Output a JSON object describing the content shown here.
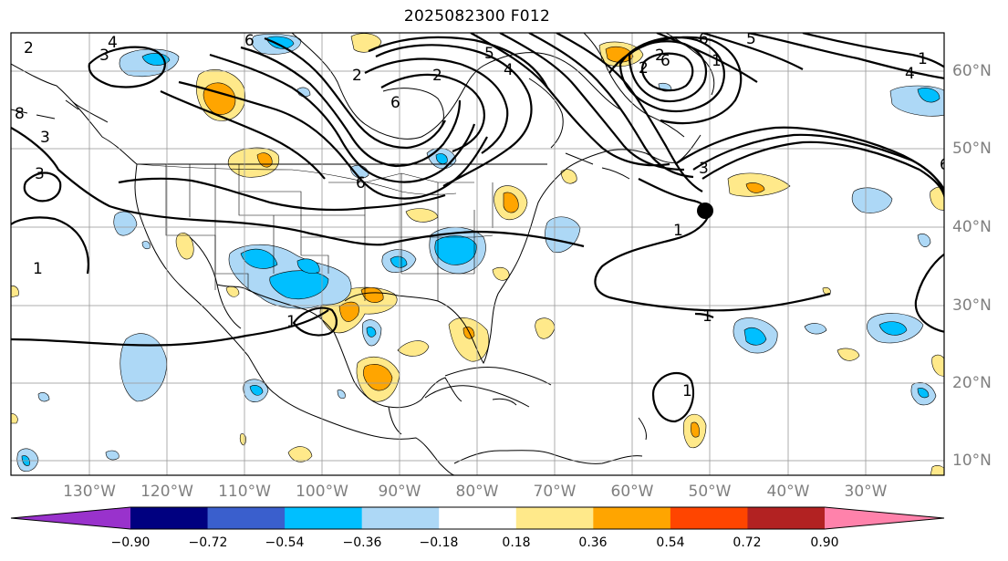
{
  "title": "2025082300 F012",
  "map": {
    "lon_labels": [
      "130°W",
      "120°W",
      "110°W",
      "100°W",
      "90°W",
      "80°W",
      "70°W",
      "60°W",
      "50°W",
      "40°W",
      "30°W"
    ],
    "lat_labels": [
      "60°N",
      "50°N",
      "40°N",
      "30°N",
      "20°N",
      "10°N"
    ],
    "contour_labels": [
      "2",
      "4",
      "3",
      "8",
      "3",
      "3",
      "1",
      "2",
      "6",
      "2",
      "6",
      "6",
      "5",
      "4",
      "2",
      "6",
      "2",
      "6",
      "1",
      "4",
      "5",
      "1",
      "3",
      "6",
      "1",
      "1",
      "1",
      "1"
    ],
    "colors": {
      "ocean": "#ffffff",
      "coast": "#000000",
      "grid": "#9a9a9a",
      "contour": "#000000"
    }
  },
  "colorbar": {
    "tick_labels": [
      "−0.90",
      "−0.72",
      "−0.54",
      "−0.36",
      "−0.18",
      "0.18",
      "0.36",
      "0.54",
      "0.72",
      "0.90"
    ],
    "colors": [
      "#9932cc",
      "#000080",
      "#3a5fcd",
      "#00bfff",
      "#add8f6",
      "#ffffff",
      "#ffe98a",
      "#ffa500",
      "#ff4500",
      "#b22222",
      "#ff82ab"
    ]
  }
}
